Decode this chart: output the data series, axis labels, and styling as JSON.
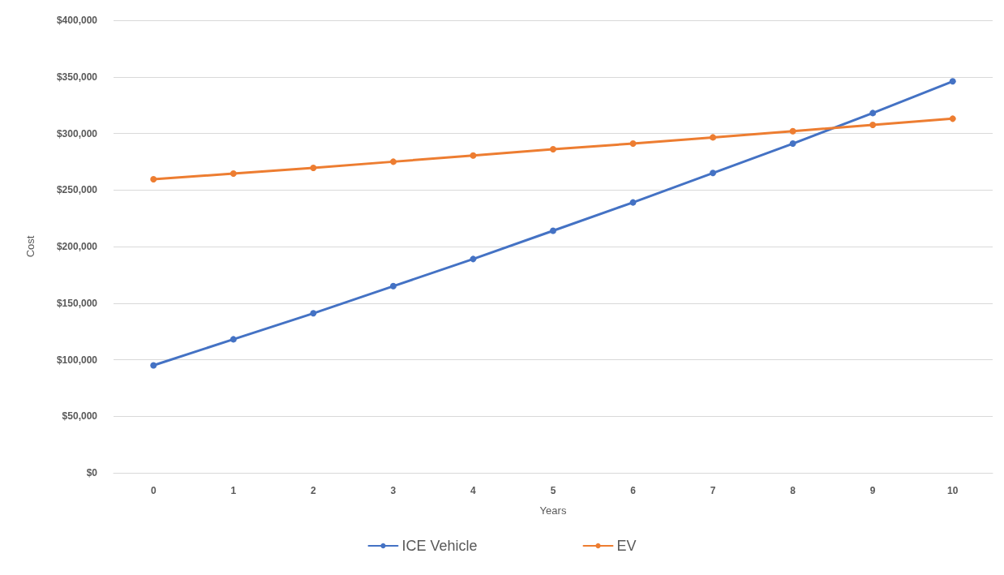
{
  "chart_data": {
    "type": "line",
    "xlabel": "Years",
    "ylabel": "Cost",
    "categories": [
      "0",
      "1",
      "2",
      "3",
      "4",
      "5",
      "6",
      "7",
      "8",
      "9",
      "10"
    ],
    "series": [
      {
        "name": "ICE Vehicle",
        "color": "#4472c4",
        "values": [
          95000,
          118000,
          141000,
          165000,
          189000,
          214000,
          239000,
          265000,
          291000,
          318000,
          346000
        ]
      },
      {
        "name": "EV",
        "color": "#ed7d31",
        "values": [
          259500,
          264500,
          269500,
          275000,
          280500,
          286000,
          291000,
          296500,
          302000,
          307500,
          313000
        ]
      }
    ],
    "ylim": [
      0,
      400000
    ],
    "yticks": [
      {
        "value": 0,
        "label": "$0"
      },
      {
        "value": 50000,
        "label": "$50,000"
      },
      {
        "value": 100000,
        "label": "$100,000"
      },
      {
        "value": 150000,
        "label": "$150,000"
      },
      {
        "value": 200000,
        "label": "$200,000"
      },
      {
        "value": 250000,
        "label": "$250,000"
      },
      {
        "value": 300000,
        "label": "$300,000"
      },
      {
        "value": 350000,
        "label": "$350,000"
      },
      {
        "value": 400000,
        "label": "$400,000"
      }
    ],
    "grid": "y",
    "legend": "bottom",
    "marker": "circle",
    "line_style": "solid"
  }
}
